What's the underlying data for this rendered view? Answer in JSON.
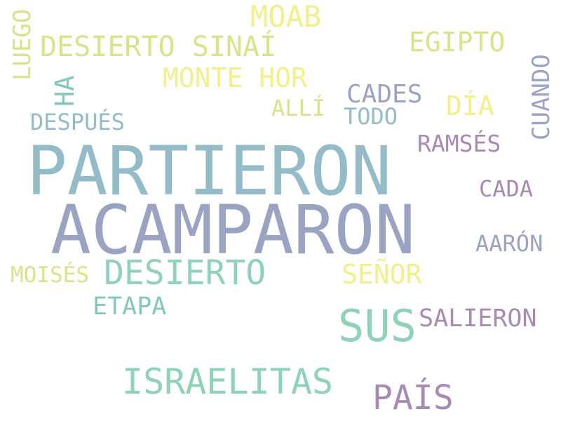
{
  "palette": {
    "steel_blue": "#93bbc8",
    "slate": "#9aa3c2",
    "mint": "#8fd3b6",
    "lime": "#d4e68a",
    "yellow": "#f3ef8b",
    "mauve": "#a88ab3",
    "teal": "#84c8bb"
  },
  "words": [
    {
      "text": "PARTIERON",
      "color": "#93bbc8"
    },
    {
      "text": "ACAMPARON",
      "color": "#9aa3c2"
    },
    {
      "text": "DESIERTO",
      "color": "#8fd3b6"
    },
    {
      "text": "SUS",
      "color": "#8fd3b6"
    },
    {
      "text": "ISRAELITAS",
      "color": "#8fd3b6"
    },
    {
      "text": "PAÍS",
      "color": "#a88ab3"
    },
    {
      "text": "MOAB",
      "color": "#f3ef8b"
    },
    {
      "text": "DESIERTO SINAÍ",
      "color": "#d4e68a"
    },
    {
      "text": "EGIPTO",
      "color": "#d4e68a"
    },
    {
      "text": "MONTE HOR",
      "color": "#f3ef8b"
    },
    {
      "text": "CADES",
      "color": "#9aa3c2"
    },
    {
      "text": "DÍA",
      "color": "#f3ef8b"
    },
    {
      "text": "ALLÍ",
      "color": "#d4e68a"
    },
    {
      "text": "TODO",
      "color": "#93bbc8"
    },
    {
      "text": "DESPUÉS",
      "color": "#93bbc8"
    },
    {
      "text": "RAMSÉS",
      "color": "#a88ab3"
    },
    {
      "text": "CADA",
      "color": "#a88ab3"
    },
    {
      "text": "AARÓN",
      "color": "#9aa3c2"
    },
    {
      "text": "MOISÉS",
      "color": "#d4e68a"
    },
    {
      "text": "SEÑOR",
      "color": "#f3ef8b"
    },
    {
      "text": "ETAPA",
      "color": "#84c8bb"
    },
    {
      "text": "SALIERON",
      "color": "#a88ab3"
    },
    {
      "text": "LUEGO",
      "color": "#d4e68a"
    },
    {
      "text": "HA",
      "color": "#84c8bb"
    },
    {
      "text": "CUANDO",
      "color": "#9aa3c2"
    }
  ]
}
